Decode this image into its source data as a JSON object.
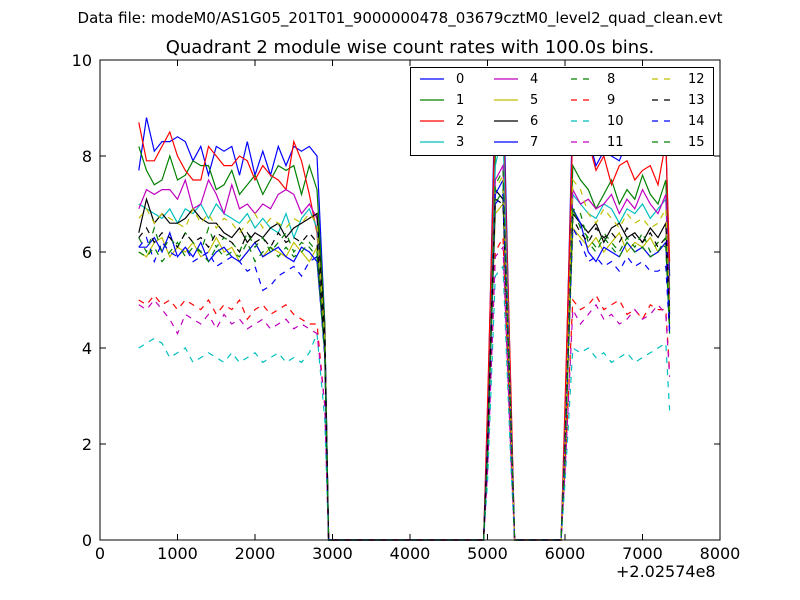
{
  "chart_data": {
    "type": "line",
    "suptitle": "Data file: modeM0/AS1G05_201T01_9000000478_03679cztM0_level2_quad_clean.evt",
    "title": "Quadrant 2 module wise count rates with 100.0s bins.",
    "xlabel": "",
    "ylabel": "",
    "x_offset_text": "+2.02574e8",
    "xlim": [
      0,
      8000
    ],
    "ylim": [
      0,
      10
    ],
    "xticks": [
      "0",
      "1000",
      "2000",
      "3000",
      "4000",
      "5000",
      "6000",
      "7000",
      "8000"
    ],
    "yticks": [
      "0",
      "2",
      "4",
      "6",
      "8",
      "10"
    ],
    "grid": false,
    "legend_placement": "top-right",
    "x": [
      500,
      600,
      700,
      800,
      900,
      1000,
      1100,
      1200,
      1300,
      1400,
      1500,
      1600,
      1700,
      1800,
      1900,
      2000,
      2100,
      2200,
      2300,
      2400,
      2500,
      2600,
      2700,
      2800,
      2900,
      2950,
      4950,
      5000,
      5100,
      5200,
      5300,
      5350,
      5950,
      6000,
      6100,
      6200,
      6300,
      6400,
      6500,
      6600,
      6700,
      6800,
      6900,
      7000,
      7100,
      7200,
      7300,
      7350
    ],
    "series": [
      {
        "name": "0",
        "color": "#0000ff",
        "dash": false,
        "values": [
          7.7,
          8.8,
          8.1,
          8.3,
          8.3,
          8.4,
          8.3,
          7.9,
          8.2,
          7.6,
          8.2,
          8.1,
          8.2,
          7.6,
          8.3,
          7.6,
          8.1,
          7.6,
          8.2,
          7.8,
          8.2,
          8.1,
          8.2,
          8.0,
          4.5,
          0,
          0,
          2.5,
          9.5,
          9.7,
          3.0,
          0,
          0,
          2.5,
          9.1,
          8.9,
          8.4,
          7.8,
          8.1,
          8.0,
          7.9,
          8.3,
          8.3,
          8.2,
          8.1,
          8.1,
          8.4,
          5.5
        ]
      },
      {
        "name": "1",
        "color": "#008000",
        "dash": false,
        "values": [
          8.2,
          7.7,
          7.4,
          7.5,
          8.0,
          7.5,
          7.6,
          7.9,
          7.8,
          7.8,
          7.3,
          7.4,
          7.7,
          7.2,
          7.4,
          7.6,
          7.2,
          7.5,
          7.8,
          7.7,
          7.8,
          7.2,
          7.8,
          7.3,
          4.5,
          0,
          0,
          2.2,
          8.0,
          8.8,
          2.8,
          0,
          0,
          2.2,
          7.8,
          7.5,
          7.3,
          6.9,
          7.2,
          7.5,
          7.0,
          7.3,
          7.1,
          7.6,
          7.2,
          7.0,
          7.5,
          5.2
        ]
      },
      {
        "name": "2",
        "color": "#ff0000",
        "dash": false,
        "values": [
          8.7,
          7.9,
          7.9,
          8.2,
          8.5,
          8.0,
          7.7,
          7.5,
          7.5,
          8.2,
          8.0,
          7.8,
          7.8,
          8.0,
          7.9,
          7.5,
          7.8,
          7.6,
          7.5,
          7.3,
          8.3,
          7.9,
          7.2,
          6.4,
          4.0,
          0,
          0,
          2.8,
          8.9,
          9.0,
          3.2,
          0,
          0,
          2.8,
          8.6,
          8.3,
          8.3,
          7.7,
          8.0,
          7.4,
          7.8,
          7.9,
          7.5,
          7.7,
          7.8,
          7.4,
          8.3,
          5.8
        ]
      },
      {
        "name": "3",
        "color": "#00bfbf",
        "dash": false,
        "values": [
          7.0,
          6.9,
          6.8,
          6.7,
          6.9,
          6.6,
          6.9,
          6.8,
          7.0,
          6.7,
          7.0,
          6.8,
          6.7,
          6.6,
          6.8,
          6.5,
          6.7,
          6.5,
          6.4,
          6.8,
          6.3,
          6.7,
          6.9,
          6.5,
          4.2,
          0,
          0,
          2.0,
          7.8,
          8.5,
          2.6,
          0,
          0,
          2.0,
          7.2,
          7.0,
          6.8,
          6.7,
          7.0,
          6.9,
          6.6,
          6.9,
          6.8,
          7.0,
          6.7,
          6.9,
          7.1,
          4.8
        ]
      },
      {
        "name": "4",
        "color": "#bf00bf",
        "dash": false,
        "values": [
          6.9,
          7.3,
          7.2,
          7.3,
          7.3,
          7.1,
          7.5,
          6.9,
          7.0,
          7.5,
          7.2,
          6.8,
          7.4,
          6.9,
          7.0,
          6.8,
          7.0,
          6.9,
          7.2,
          7.3,
          7.2,
          6.8,
          7.0,
          6.7,
          4.3,
          0,
          0,
          2.2,
          7.5,
          7.8,
          2.7,
          0,
          0,
          2.2,
          7.3,
          7.0,
          7.1,
          6.9,
          7.0,
          7.2,
          6.8,
          7.1,
          6.9,
          7.3,
          7.0,
          6.8,
          7.2,
          5.0
        ]
      },
      {
        "name": "5",
        "color": "#bfbf00",
        "dash": false,
        "values": [
          6.0,
          5.9,
          6.2,
          6.3,
          5.9,
          6.1,
          6.0,
          6.2,
          5.9,
          6.0,
          6.3,
          6.0,
          6.1,
          5.8,
          6.0,
          6.2,
          5.9,
          6.1,
          6.0,
          5.9,
          6.2,
          6.0,
          5.8,
          6.1,
          3.9,
          0,
          0,
          1.8,
          6.8,
          7.0,
          2.4,
          0,
          0,
          1.8,
          6.5,
          6.3,
          6.1,
          6.3,
          6.0,
          6.2,
          6.4,
          6.0,
          6.2,
          6.1,
          6.3,
          6.0,
          6.2,
          4.5
        ]
      },
      {
        "name": "6",
        "color": "#000000",
        "dash": false,
        "values": [
          6.4,
          7.1,
          6.6,
          6.8,
          6.6,
          6.6,
          6.7,
          6.9,
          6.7,
          6.6,
          6.6,
          6.4,
          6.3,
          6.5,
          6.2,
          6.4,
          6.3,
          6.5,
          6.6,
          6.3,
          6.5,
          6.6,
          6.7,
          6.8,
          4.3,
          0,
          0,
          2.0,
          7.3,
          7.1,
          2.6,
          0,
          0,
          2.0,
          6.8,
          6.6,
          6.4,
          6.6,
          6.2,
          6.5,
          6.6,
          6.3,
          6.4,
          6.2,
          6.5,
          6.3,
          6.6,
          4.7
        ]
      },
      {
        "name": "7",
        "color": "#0000ff",
        "dash": false,
        "values": [
          6.1,
          6.1,
          6.3,
          6.0,
          6.4,
          5.9,
          6.1,
          5.9,
          6.2,
          5.8,
          6.0,
          6.1,
          5.9,
          5.8,
          6.0,
          6.2,
          5.9,
          6.0,
          6.1,
          5.9,
          5.8,
          6.1,
          6.0,
          5.8,
          3.9,
          0,
          0,
          1.9,
          7.2,
          7.5,
          2.5,
          0,
          0,
          1.9,
          6.9,
          6.6,
          6.0,
          5.8,
          6.1,
          6.0,
          5.9,
          6.2,
          6.0,
          6.1,
          5.9,
          6.0,
          6.2,
          4.4
        ]
      },
      {
        "name": "8",
        "color": "#008000",
        "dash": true,
        "values": [
          6.3,
          6.0,
          6.5,
          6.0,
          6.3,
          6.1,
          6.4,
          6.2,
          6.0,
          6.5,
          6.1,
          6.3,
          6.2,
          6.0,
          6.4,
          6.1,
          6.3,
          6.0,
          6.2,
          6.4,
          6.0,
          6.2,
          6.1,
          5.9,
          3.9,
          0,
          0,
          1.8,
          7.0,
          7.3,
          2.4,
          0,
          0,
          1.8,
          6.9,
          6.5,
          6.3,
          6.1,
          6.4,
          6.2,
          6.0,
          6.3,
          6.1,
          6.4,
          6.0,
          6.2,
          6.1,
          4.3
        ]
      },
      {
        "name": "9",
        "color": "#ff0000",
        "dash": true,
        "values": [
          5.0,
          4.9,
          5.1,
          4.9,
          5.0,
          4.8,
          5.0,
          4.9,
          4.8,
          5.0,
          4.7,
          4.9,
          4.8,
          5.0,
          4.6,
          4.8,
          4.9,
          4.7,
          4.8,
          4.9,
          4.7,
          4.6,
          4.5,
          4.5,
          2.8,
          0,
          0,
          1.5,
          6.0,
          6.3,
          1.9,
          0,
          0,
          1.5,
          5.0,
          4.8,
          4.9,
          5.1,
          4.8,
          4.9,
          5.0,
          4.7,
          4.8,
          4.6,
          4.9,
          4.8,
          4.8,
          3.5
        ]
      },
      {
        "name": "10",
        "color": "#00bfbf",
        "dash": true,
        "values": [
          4.0,
          4.1,
          4.2,
          4.1,
          3.8,
          3.9,
          4.0,
          3.7,
          3.8,
          3.9,
          3.8,
          3.7,
          3.9,
          3.7,
          3.8,
          3.9,
          3.7,
          3.8,
          3.9,
          3.7,
          3.8,
          3.7,
          3.9,
          4.3,
          2.5,
          0,
          0,
          1.2,
          5.5,
          5.7,
          1.6,
          0,
          0,
          1.2,
          4.0,
          3.9,
          4.0,
          3.8,
          3.9,
          3.7,
          3.8,
          3.9,
          3.7,
          3.8,
          3.9,
          4.0,
          4.1,
          2.7
        ]
      },
      {
        "name": "11",
        "color": "#bf00bf",
        "dash": true,
        "values": [
          4.9,
          4.8,
          5.0,
          4.8,
          4.6,
          4.3,
          4.7,
          4.6,
          4.5,
          4.7,
          4.4,
          4.7,
          4.5,
          4.6,
          4.4,
          4.5,
          4.6,
          4.4,
          4.5,
          4.6,
          4.4,
          4.5,
          4.4,
          4.3,
          2.8,
          0,
          0,
          1.4,
          5.9,
          6.1,
          1.8,
          0,
          0,
          1.4,
          4.8,
          4.5,
          4.7,
          4.9,
          4.6,
          4.7,
          4.5,
          4.6,
          4.8,
          4.6,
          4.7,
          4.9,
          4.7,
          3.4
        ]
      },
      {
        "name": "12",
        "color": "#bfbf00",
        "dash": true,
        "values": [
          6.7,
          6.9,
          6.6,
          6.8,
          6.7,
          6.6,
          6.5,
          6.9,
          6.6,
          6.8,
          6.5,
          6.7,
          6.6,
          6.4,
          6.6,
          6.8,
          6.5,
          6.7,
          6.6,
          6.5,
          6.7,
          6.6,
          6.8,
          6.6,
          4.2,
          0,
          0,
          2.0,
          7.3,
          7.6,
          2.6,
          0,
          0,
          2.0,
          7.5,
          7.3,
          6.8,
          6.6,
          6.9,
          6.7,
          6.5,
          6.8,
          6.6,
          6.7,
          6.5,
          6.6,
          6.9,
          4.8
        ]
      },
      {
        "name": "13",
        "color": "#000000",
        "dash": true,
        "values": [
          6.3,
          6.5,
          6.2,
          6.4,
          6.3,
          6.1,
          6.4,
          6.2,
          6.3,
          6.1,
          6.4,
          6.3,
          6.2,
          6.0,
          6.4,
          6.2,
          6.3,
          6.1,
          6.4,
          6.2,
          6.3,
          6.2,
          6.4,
          6.2,
          4.0,
          0,
          0,
          1.9,
          7.1,
          7.0,
          2.5,
          0,
          0,
          1.9,
          6.7,
          6.4,
          6.2,
          6.5,
          6.3,
          6.4,
          6.2,
          6.5,
          6.3,
          6.2,
          6.4,
          6.1,
          6.3,
          4.5
        ]
      },
      {
        "name": "14",
        "color": "#0000ff",
        "dash": true,
        "values": [
          6.1,
          6.3,
          5.8,
          6.2,
          6.0,
          5.9,
          6.1,
          5.8,
          5.9,
          6.0,
          5.7,
          5.8,
          5.9,
          5.8,
          5.6,
          5.7,
          5.2,
          5.3,
          5.5,
          5.6,
          5.7,
          5.5,
          5.8,
          5.9,
          3.8,
          0,
          0,
          1.9,
          7.0,
          7.2,
          2.5,
          0,
          0,
          1.9,
          6.5,
          6.2,
          5.8,
          5.9,
          5.7,
          5.8,
          5.6,
          5.9,
          5.7,
          5.8,
          5.6,
          5.6,
          5.7,
          4.3
        ]
      },
      {
        "name": "15",
        "color": "#008000",
        "dash": true,
        "values": [
          6.0,
          5.9,
          6.1,
          5.8,
          6.0,
          6.2,
          5.9,
          6.1,
          6.0,
          5.8,
          6.1,
          5.9,
          6.0,
          5.9,
          6.2,
          5.8,
          6.0,
          6.1,
          5.9,
          6.1,
          5.9,
          6.0,
          6.2,
          6.0,
          3.9,
          0,
          0,
          1.8,
          7.4,
          7.7,
          2.5,
          0,
          0,
          1.8,
          6.9,
          6.8,
          6.2,
          6.0,
          6.3,
          6.1,
          5.9,
          6.2,
          6.0,
          6.1,
          5.9,
          6.0,
          6.3,
          4.4
        ]
      }
    ]
  }
}
